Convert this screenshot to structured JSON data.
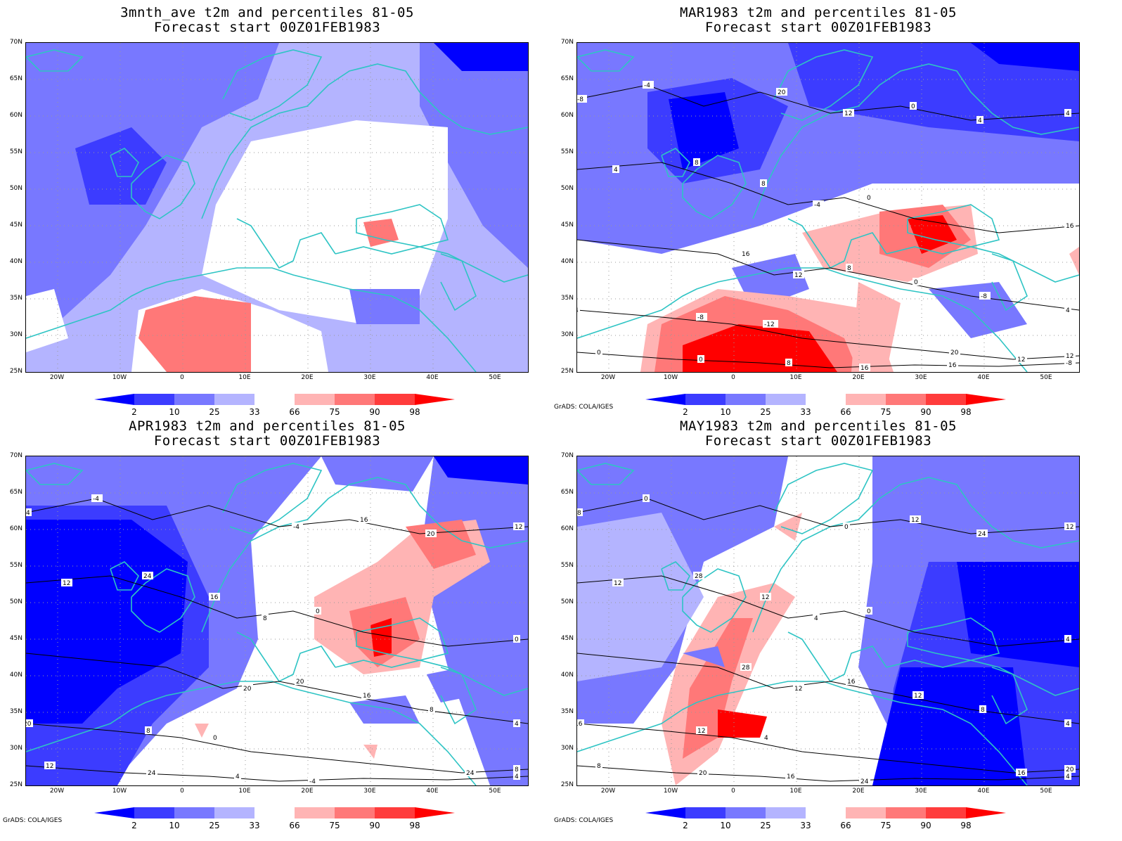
{
  "panels": [
    {
      "title1": "3mnth_ave t2m and percentiles 81-05",
      "title2": "Forecast start 00Z01FEB1983",
      "credit": ""
    },
    {
      "title1": "MAR1983 t2m and percentiles 81-05",
      "title2": "Forecast start 00Z01FEB1983",
      "credit": "GrADS: COLA/IGES"
    },
    {
      "title1": "APR1983 t2m and percentiles 81-05",
      "title2": "Forecast start 00Z01FEB1983",
      "credit": "GrADS: COLA/IGES"
    },
    {
      "title1": "MAY1983 t2m and percentiles 81-05",
      "title2": "Forecast start 00Z01FEB1983",
      "credit": "GrADS: COLA/IGES"
    }
  ],
  "lat_labels": [
    "70N",
    "65N",
    "60N",
    "55N",
    "50N",
    "45N",
    "40N",
    "35N",
    "30N",
    "25N"
  ],
  "lon_labels": [
    "20W",
    "10W",
    "0",
    "10E",
    "20E",
    "30E",
    "40E",
    "50E"
  ],
  "colorbar": {
    "labels": [
      "2",
      "10",
      "25",
      "33",
      "66",
      "75",
      "90",
      "98"
    ],
    "colors": [
      "#0000ff",
      "#3c3cff",
      "#7878ff",
      "#b4b4ff",
      "#ffffff",
      "#ffb4b4",
      "#ff7878",
      "#ff3c3c",
      "#ff0000"
    ]
  },
  "colors": {
    "coast": "#2ec4c4",
    "contour": "#000000",
    "grid": "#9a9a9a"
  },
  "contour_labels": [
    [
      "-4",
      "0",
      "4",
      "-12",
      "-8",
      "-8",
      "-4",
      "-8",
      "-8",
      "0",
      "4",
      "8",
      "0",
      "4",
      "0",
      "4",
      "8",
      "8",
      "12",
      "8",
      "0",
      "4",
      "12",
      "12",
      "16",
      "12",
      "16",
      "16",
      "20",
      "16",
      "20"
    ],
    [
      "-4",
      "0",
      "4",
      "0",
      "4",
      "4",
      "8",
      "8",
      "8",
      "12",
      "12",
      "16",
      "16",
      "20",
      "24",
      "20",
      "24",
      "20",
      "8",
      "4",
      "16",
      "12",
      "20",
      "24",
      "-4",
      "-4",
      "0"
    ],
    [
      "0",
      "0",
      "4",
      "4",
      "4",
      "8",
      "4",
      "8",
      "12",
      "8",
      "12",
      "12",
      "12",
      "16",
      "20",
      "24",
      "28",
      "16",
      "20",
      "16",
      "12",
      "12",
      "12",
      "16",
      "24",
      "0",
      "4",
      "28"
    ]
  ]
}
